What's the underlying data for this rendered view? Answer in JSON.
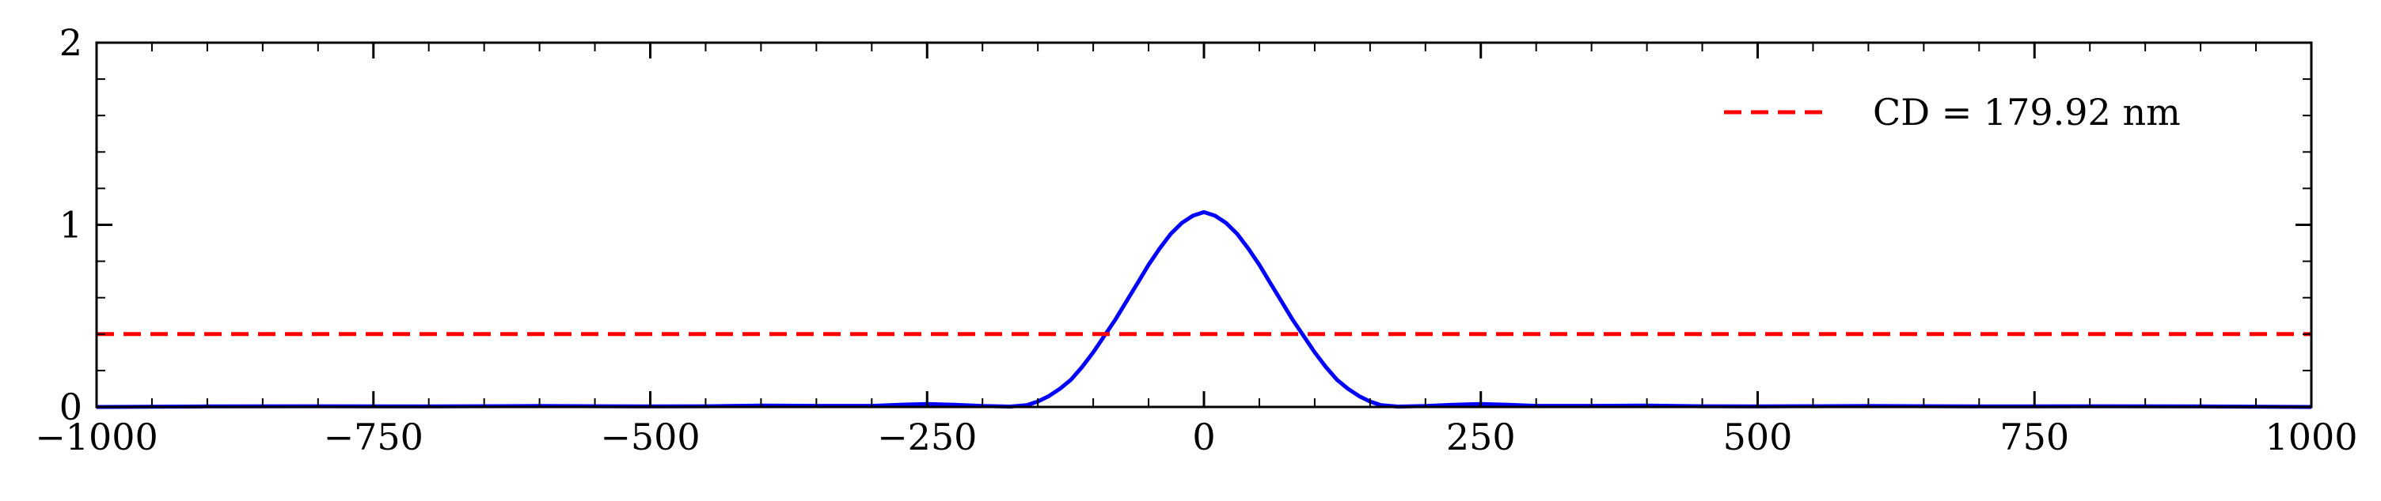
{
  "chart_data": {
    "type": "line",
    "title": "",
    "xlabel": "",
    "ylabel": "",
    "xlim": [
      -1000,
      1000
    ],
    "ylim": [
      0,
      2
    ],
    "x_ticks": [
      -1000,
      -750,
      -500,
      -250,
      0,
      250,
      500,
      750,
      1000
    ],
    "x_tick_labels": [
      "−1000",
      "−750",
      "−500",
      "−250",
      "0",
      "250",
      "500",
      "750",
      "1000"
    ],
    "y_ticks": [
      0,
      1,
      2
    ],
    "y_tick_labels": [
      "0",
      "1",
      "2"
    ],
    "grid": false,
    "legend_position": "top-right",
    "series": [
      {
        "color": "#0000ff",
        "style": "solid",
        "x": [
          -1000,
          -900,
          -800,
          -700,
          -600,
          -500,
          -450,
          -400,
          -350,
          -300,
          -275,
          -250,
          -225,
          -200,
          -175,
          -160,
          -150,
          -140,
          -130,
          -120,
          -110,
          -100,
          -90,
          -80,
          -70,
          -60,
          -50,
          -40,
          -30,
          -20,
          -10,
          0,
          10,
          20,
          30,
          40,
          50,
          60,
          70,
          80,
          90,
          100,
          110,
          120,
          130,
          140,
          150,
          160,
          175,
          200,
          225,
          250,
          275,
          300,
          350,
          400,
          450,
          500,
          600,
          700,
          800,
          900,
          1000
        ],
        "y": [
          0.0,
          0.003,
          0.004,
          0.003,
          0.005,
          0.003,
          0.004,
          0.008,
          0.006,
          0.006,
          0.012,
          0.016,
          0.012,
          0.005,
          0.002,
          0.01,
          0.03,
          0.06,
          0.1,
          0.15,
          0.22,
          0.3,
          0.39,
          0.48,
          0.58,
          0.68,
          0.78,
          0.87,
          0.95,
          1.01,
          1.05,
          1.07,
          1.05,
          1.01,
          0.95,
          0.87,
          0.78,
          0.68,
          0.58,
          0.48,
          0.39,
          0.3,
          0.22,
          0.15,
          0.1,
          0.06,
          0.03,
          0.01,
          0.002,
          0.005,
          0.012,
          0.016,
          0.012,
          0.006,
          0.006,
          0.008,
          0.004,
          0.003,
          0.005,
          0.003,
          0.004,
          0.003,
          0.0
        ]
      },
      {
        "name": "CD = 179.92 nm",
        "color": "#ff0000",
        "style": "dashed",
        "type": "hline",
        "y_value": 0.4
      }
    ]
  }
}
